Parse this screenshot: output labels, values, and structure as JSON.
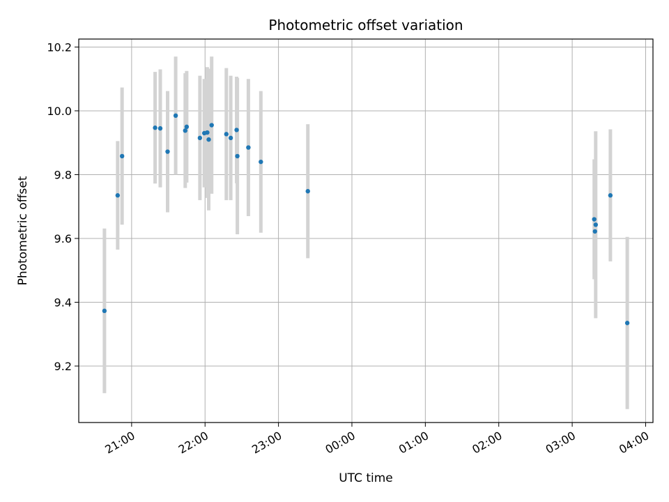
{
  "chart_data": {
    "type": "scatter",
    "title": "Photometric offset variation",
    "xlabel": "UTC time",
    "ylabel": "Photometric offset",
    "x_unit": "hours from 00:00 UTC (negative = previous evening)",
    "xlim": [
      -3.72,
      4.1
    ],
    "ylim": [
      9.023,
      10.225
    ],
    "xticks": [
      {
        "value": -3,
        "label": "21:00"
      },
      {
        "value": -2,
        "label": "22:00"
      },
      {
        "value": -1,
        "label": "23:00"
      },
      {
        "value": 0,
        "label": "00:00"
      },
      {
        "value": 1,
        "label": "01:00"
      },
      {
        "value": 2,
        "label": "02:00"
      },
      {
        "value": 3,
        "label": "03:00"
      },
      {
        "value": 4,
        "label": "04:00"
      }
    ],
    "yticks": [
      {
        "value": 9.2,
        "label": "9.2"
      },
      {
        "value": 9.4,
        "label": "9.4"
      },
      {
        "value": 9.6,
        "label": "9.6"
      },
      {
        "value": 9.8,
        "label": "9.8"
      },
      {
        "value": 10.0,
        "label": "10.0"
      },
      {
        "value": 10.2,
        "label": "10.2"
      }
    ],
    "grid": true,
    "point_color": "#1f77b4",
    "errorbar_color": "#d3d3d3",
    "series": [
      {
        "points": [
          {
            "x": -3.37,
            "y": 9.373,
            "err": 0.258
          },
          {
            "x": -3.19,
            "y": 9.735,
            "err": 0.17
          },
          {
            "x": -3.13,
            "y": 9.858,
            "err": 0.215
          },
          {
            "x": -2.68,
            "y": 9.947,
            "err": 0.175
          },
          {
            "x": -2.61,
            "y": 9.945,
            "err": 0.185
          },
          {
            "x": -2.51,
            "y": 9.872,
            "err": 0.19
          },
          {
            "x": -2.4,
            "y": 9.985,
            "err": 0.185
          },
          {
            "x": -2.27,
            "y": 9.938,
            "err": 0.18
          },
          {
            "x": -2.25,
            "y": 9.95,
            "err": 0.175
          },
          {
            "x": -2.07,
            "y": 9.915,
            "err": 0.195
          },
          {
            "x": -2.01,
            "y": 9.93,
            "err": 0.17
          },
          {
            "x": -1.97,
            "y": 9.932,
            "err": 0.205
          },
          {
            "x": -1.95,
            "y": 9.91,
            "err": 0.222
          },
          {
            "x": -1.91,
            "y": 9.955,
            "err": 0.215
          },
          {
            "x": -1.71,
            "y": 9.927,
            "err": 0.207
          },
          {
            "x": -1.65,
            "y": 9.915,
            "err": 0.195
          },
          {
            "x": -1.57,
            "y": 9.94,
            "err": 0.167
          },
          {
            "x": -1.56,
            "y": 9.858,
            "err": 0.245
          },
          {
            "x": -1.41,
            "y": 9.885,
            "err": 0.215
          },
          {
            "x": -1.24,
            "y": 9.84,
            "err": 0.222
          },
          {
            "x": -0.6,
            "y": 9.748,
            "err": 0.21
          },
          {
            "x": 3.3,
            "y": 9.66,
            "err": 0.188
          },
          {
            "x": 3.31,
            "y": 9.622,
            "err": 0.135
          },
          {
            "x": 3.32,
            "y": 9.643,
            "err": 0.293
          },
          {
            "x": 3.52,
            "y": 9.735,
            "err": 0.207
          },
          {
            "x": 3.75,
            "y": 9.335,
            "err": 0.27
          }
        ]
      }
    ]
  }
}
